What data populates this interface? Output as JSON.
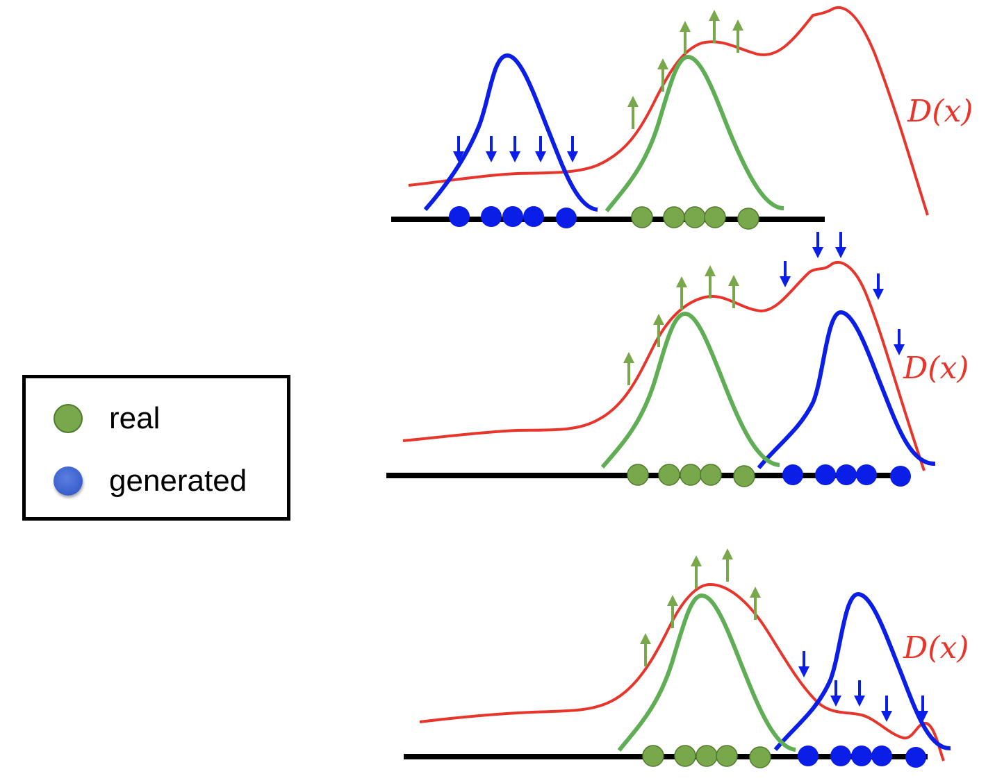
{
  "legend": {
    "items": [
      {
        "label": "real",
        "color": "#79a84c"
      },
      {
        "label": "generated",
        "color": "#3a5fcc"
      }
    ]
  },
  "colors": {
    "discriminator": "#e8352b",
    "real_curve": "#5fae55",
    "generated_curve": "#0a1ee8",
    "real_arrow": "#79a84c",
    "generated_arrow": "#0a1ee8",
    "real_point": "#79a84c",
    "generated_point": "#0a1ee8",
    "axis": "#000000"
  },
  "panels": [
    {
      "discriminator_label": "D(x)"
    },
    {
      "discriminator_label": "D(x)"
    },
    {
      "discriminator_label": "D(x)"
    }
  ]
}
